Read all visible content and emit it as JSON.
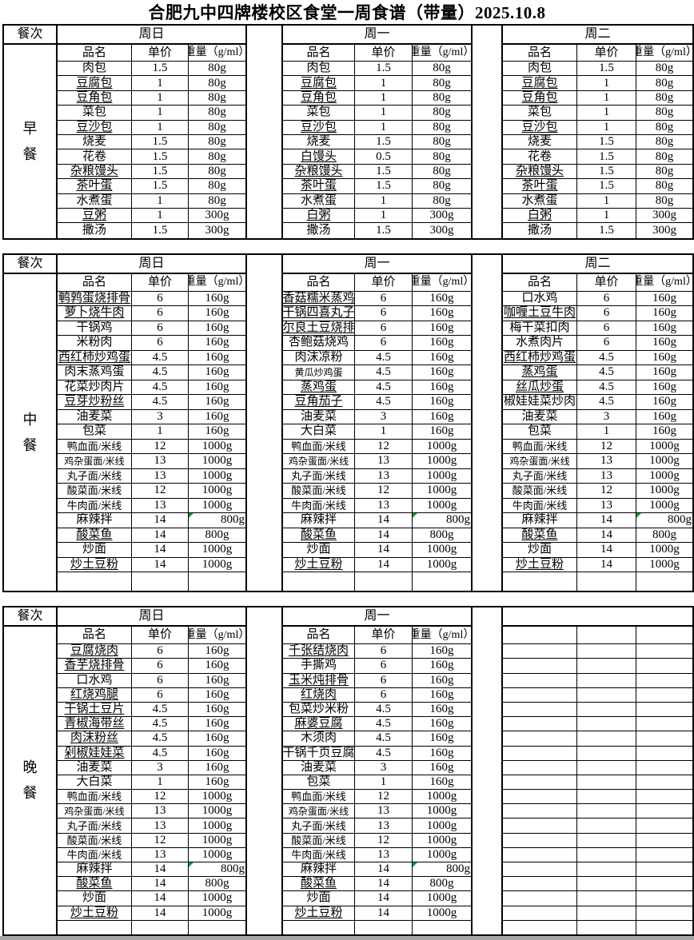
{
  "title": "合肥九中四牌楼校区食堂一周食谱（带量）2025.10.8",
  "headers": {
    "meal_col": "餐次",
    "name": "品名",
    "price": "单价",
    "qty": "重量（g/ml）"
  },
  "colors": {
    "border": "#000000",
    "flag_triangle": "#00a33e",
    "footer_grey": "#a6a6a6"
  },
  "notes": {
    "flag_meaning": "green corner triangle on 麻辣拌 quantity cells"
  },
  "sections": [
    {
      "meal": "早餐",
      "trailing_empty_row": false,
      "days": [
        {
          "label": "周日",
          "items": [
            [
              "肉包",
              "1.5",
              "80g",
              ""
            ],
            [
              "豆腐包",
              "1",
              "80g",
              "u"
            ],
            [
              "豆角包",
              "1",
              "80g",
              "u"
            ],
            [
              "菜包",
              "1",
              "80g",
              ""
            ],
            [
              "豆沙包",
              "1",
              "80g",
              "u"
            ],
            [
              "烧麦",
              "1.5",
              "80g",
              ""
            ],
            [
              "花卷",
              "1.5",
              "80g",
              ""
            ],
            [
              "杂粮馒头",
              "1.5",
              "80g",
              "u"
            ],
            [
              "茶叶蛋",
              "1.5",
              "80g",
              "u"
            ],
            [
              "水煮蛋",
              "1",
              "80g",
              ""
            ],
            [
              "豆粥",
              "1",
              "300g",
              "u"
            ],
            [
              "撒汤",
              "1.5",
              "300g",
              ""
            ]
          ]
        },
        {
          "label": "周一",
          "items": [
            [
              "肉包",
              "1.5",
              "80g",
              ""
            ],
            [
              "豆腐包",
              "1",
              "80g",
              "u"
            ],
            [
              "豆角包",
              "1",
              "80g",
              "u"
            ],
            [
              "菜包",
              "1",
              "80g",
              ""
            ],
            [
              "豆沙包",
              "1",
              "80g",
              "u"
            ],
            [
              "烧麦",
              "1.5",
              "80g",
              ""
            ],
            [
              "白馒头",
              "0.5",
              "80g",
              "u"
            ],
            [
              "杂粮馒头",
              "1.5",
              "80g",
              "u"
            ],
            [
              "茶叶蛋",
              "1.5",
              "80g",
              "u"
            ],
            [
              "水煮蛋",
              "1",
              "80g",
              ""
            ],
            [
              "白粥",
              "1",
              "300g",
              "u"
            ],
            [
              "撒汤",
              "1.5",
              "300g",
              ""
            ]
          ]
        },
        {
          "label": "周二",
          "items": [
            [
              "肉包",
              "1.5",
              "80g",
              ""
            ],
            [
              "豆腐包",
              "1",
              "80g",
              "u"
            ],
            [
              "豆角包",
              "1",
              "80g",
              "u"
            ],
            [
              "菜包",
              "1",
              "80g",
              ""
            ],
            [
              "豆沙包",
              "1",
              "80g",
              "u"
            ],
            [
              "烧麦",
              "1.5",
              "80g",
              ""
            ],
            [
              "花卷",
              "1.5",
              "80g",
              ""
            ],
            [
              "杂粮馒头",
              "1.5",
              "80g",
              "u"
            ],
            [
              "茶叶蛋",
              "1.5",
              "80g",
              "u"
            ],
            [
              "水煮蛋",
              "1",
              "80g",
              ""
            ],
            [
              "白粥",
              "1",
              "300g",
              "u"
            ],
            [
              "撒汤",
              "1.5",
              "300g",
              ""
            ]
          ]
        }
      ]
    },
    {
      "meal": "中餐",
      "trailing_empty_row": true,
      "days": [
        {
          "label": "周日",
          "items": [
            [
              "鹌鹑蛋烧排骨",
              "6",
              "160g",
              "u"
            ],
            [
              "萝卜烧牛肉",
              "6",
              "160g",
              "u"
            ],
            [
              "干锅鸡",
              "6",
              "160g",
              ""
            ],
            [
              "米粉肉",
              "6",
              "160g",
              ""
            ],
            [
              "西红柿炒鸡蛋",
              "4.5",
              "160g",
              "u"
            ],
            [
              "肉末蒸鸡蛋",
              "4.5",
              "160g",
              ""
            ],
            [
              "花菜炒肉片",
              "4.5",
              "160g",
              ""
            ],
            [
              "豆芽炒粉丝",
              "4.5",
              "160g",
              "u"
            ],
            [
              "油麦菜",
              "3",
              "160g",
              ""
            ],
            [
              "包菜",
              "1",
              "160g",
              ""
            ],
            [
              "鸭血面/米线",
              "12",
              "1000g",
              "s"
            ],
            [
              "鸡杂蛋面/米线",
              "13",
              "1000g",
              "x"
            ],
            [
              "丸子面/米线",
              "13",
              "1000g",
              "s"
            ],
            [
              "酸菜面/米线",
              "12",
              "1000g",
              "s"
            ],
            [
              "牛肉面/米线",
              "13",
              "1000g",
              "s"
            ],
            [
              "麻辣拌",
              "14",
              "800g",
              "r"
            ],
            [
              "酸菜鱼",
              "14",
              "800g",
              "u"
            ],
            [
              "炒面",
              "14",
              "1000g",
              ""
            ],
            [
              "炒土豆粉",
              "14",
              "1000g",
              "u"
            ]
          ]
        },
        {
          "label": "周一",
          "items": [
            [
              "香菇糯米蒸鸡",
              "6",
              "160g",
              "u"
            ],
            [
              "干锅四喜丸子",
              "6",
              "160g",
              "u"
            ],
            [
              "尔良土豆烧排",
              "6",
              "160g",
              "u"
            ],
            [
              "杏鲍菇烧鸡",
              "6",
              "160g",
              ""
            ],
            [
              "肉沫凉粉",
              "4.5",
              "160g",
              ""
            ],
            [
              "黄瓜炒鸡蛋",
              "4.5",
              "160g",
              "x"
            ],
            [
              "蒸鸡蛋",
              "4.5",
              "160g",
              "u"
            ],
            [
              "豆角茄子",
              "4.5",
              "160g",
              "u"
            ],
            [
              "油麦菜",
              "3",
              "160g",
              ""
            ],
            [
              "大白菜",
              "1",
              "160g",
              ""
            ],
            [
              "鸭血面/米线",
              "12",
              "1000g",
              "s"
            ],
            [
              "鸡杂蛋面/米线",
              "13",
              "1000g",
              "x"
            ],
            [
              "丸子面/米线",
              "13",
              "1000g",
              "s"
            ],
            [
              "酸菜面/米线",
              "12",
              "1000g",
              "s"
            ],
            [
              "牛肉面/米线",
              "13",
              "1000g",
              "s"
            ],
            [
              "麻辣拌",
              "14",
              "800g",
              "r"
            ],
            [
              "酸菜鱼",
              "14",
              "800g",
              "u"
            ],
            [
              "炒面",
              "14",
              "1000g",
              ""
            ],
            [
              "炒土豆粉",
              "14",
              "1000g",
              "u"
            ]
          ]
        },
        {
          "label": "周二",
          "items": [
            [
              "口水鸡",
              "6",
              "160g",
              ""
            ],
            [
              "咖喱土豆牛肉",
              "6",
              "160g",
              "u"
            ],
            [
              "梅干菜扣肉",
              "6",
              "160g",
              ""
            ],
            [
              "水煮肉片",
              "6",
              "160g",
              ""
            ],
            [
              "西红柿炒鸡蛋",
              "4.5",
              "160g",
              "u"
            ],
            [
              "蒸鸡蛋",
              "4.5",
              "160g",
              "u"
            ],
            [
              "丝瓜炒蛋",
              "4.5",
              "160g",
              "u"
            ],
            [
              "椒娃娃菜炒肉",
              "4.5",
              "160g",
              ""
            ],
            [
              "油麦菜",
              "3",
              "160g",
              ""
            ],
            [
              "包菜",
              "1",
              "160g",
              ""
            ],
            [
              "鸭血面/米线",
              "12",
              "1000g",
              "s"
            ],
            [
              "鸡杂蛋面/米线",
              "13",
              "1000g",
              "x"
            ],
            [
              "丸子面/米线",
              "13",
              "1000g",
              "s"
            ],
            [
              "酸菜面/米线",
              "12",
              "1000g",
              "s"
            ],
            [
              "牛肉面/米线",
              "13",
              "1000g",
              "s"
            ],
            [
              "麻辣拌",
              "14",
              "800g",
              "r"
            ],
            [
              "酸菜鱼",
              "14",
              "800g",
              "u"
            ],
            [
              "炒面",
              "14",
              "1000g",
              ""
            ],
            [
              "炒土豆粉",
              "14",
              "1000g",
              "u"
            ]
          ]
        }
      ]
    },
    {
      "meal": "晚餐",
      "trailing_empty_row": true,
      "days": [
        {
          "label": "周日",
          "items": [
            [
              "豆腐烧肉",
              "6",
              "160g",
              "u"
            ],
            [
              "香芋烧排骨",
              "6",
              "160g",
              "u"
            ],
            [
              "口水鸡",
              "6",
              "160g",
              ""
            ],
            [
              "红烧鸡腿",
              "6",
              "160g",
              "u"
            ],
            [
              "干锅土豆片",
              "4.5",
              "160g",
              "u"
            ],
            [
              "青椒海带丝",
              "4.5",
              "160g",
              "u"
            ],
            [
              "肉沫粉丝",
              "4.5",
              "160g",
              "u"
            ],
            [
              "剁椒娃娃菜",
              "4.5",
              "160g",
              "u"
            ],
            [
              "油麦菜",
              "3",
              "160g",
              ""
            ],
            [
              "大白菜",
              "1",
              "160g",
              ""
            ],
            [
              "鸭血面/米线",
              "12",
              "1000g",
              "s"
            ],
            [
              "鸡杂蛋面/米线",
              "13",
              "1000g",
              "x"
            ],
            [
              "丸子面/米线",
              "13",
              "1000g",
              "s"
            ],
            [
              "酸菜面/米线",
              "12",
              "1000g",
              "s"
            ],
            [
              "牛肉面/米线",
              "13",
              "1000g",
              "s"
            ],
            [
              "麻辣拌",
              "14",
              "800g",
              "r"
            ],
            [
              "酸菜鱼",
              "14",
              "800g",
              "u"
            ],
            [
              "炒面",
              "14",
              "1000g",
              ""
            ],
            [
              "炒土豆粉",
              "14",
              "1000g",
              "u"
            ]
          ]
        },
        {
          "label": "周一",
          "items": [
            [
              "千张结烧肉",
              "6",
              "160g",
              "u"
            ],
            [
              "手撕鸡",
              "6",
              "160g",
              ""
            ],
            [
              "玉米炖排骨",
              "6",
              "160g",
              "u"
            ],
            [
              "红烧肉",
              "6",
              "160g",
              "u"
            ],
            [
              "包菜炒米粉",
              "4.5",
              "160g",
              ""
            ],
            [
              "麻婆豆腐",
              "4.5",
              "160g",
              "u"
            ],
            [
              "木须肉",
              "4.5",
              "160g",
              ""
            ],
            [
              "干锅千页豆腐",
              "4.5",
              "160g",
              ""
            ],
            [
              "油麦菜",
              "3",
              "160g",
              ""
            ],
            [
              "包菜",
              "1",
              "160g",
              ""
            ],
            [
              "鸭血面/米线",
              "12",
              "1000g",
              "s"
            ],
            [
              "鸡杂蛋面/米线",
              "13",
              "1000g",
              "x"
            ],
            [
              "丸子面/米线",
              "13",
              "1000g",
              "s"
            ],
            [
              "酸菜面/米线",
              "12",
              "1000g",
              "s"
            ],
            [
              "牛肉面/米线",
              "13",
              "1000g",
              "s"
            ],
            [
              "麻辣拌",
              "14",
              "800g",
              "r"
            ],
            [
              "酸菜鱼",
              "14",
              "800g",
              "u"
            ],
            [
              "炒面",
              "14",
              "1000g",
              ""
            ],
            [
              "炒土豆粉",
              "14",
              "1000g",
              "u"
            ]
          ]
        },
        {
          "label": "",
          "empty": true,
          "items": []
        }
      ]
    }
  ]
}
